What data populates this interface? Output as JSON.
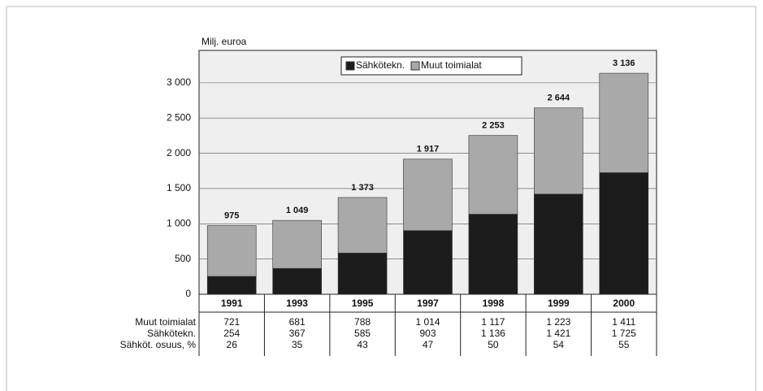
{
  "chart_data": {
    "type": "bar",
    "stacked": true,
    "y_axis_label": "Milj. euroa",
    "categories": [
      "1991",
      "1993",
      "1995",
      "1997",
      "1998",
      "1999",
      "2000"
    ],
    "series": [
      {
        "name": "Sähkötekn.",
        "color": "#1c1c1c",
        "values": [
          254,
          367,
          585,
          903,
          1136,
          1421,
          1725
        ],
        "value_labels": [
          "254",
          "367",
          "585",
          "903",
          "1 136",
          "1 421",
          "1 725"
        ]
      },
      {
        "name": "Muut toimialat",
        "color": "#a9a9a9",
        "values": [
          721,
          681,
          788,
          1014,
          1117,
          1223,
          1411
        ],
        "value_labels": [
          "721",
          "681",
          "788",
          "1 014",
          "1 117",
          "1 223",
          "1 411"
        ]
      }
    ],
    "totals": [
      975,
      1049,
      1373,
      1917,
      2253,
      2644,
      3136
    ],
    "total_labels": [
      "975",
      "1 049",
      "1 373",
      "1 917",
      "2 253",
      "2 644",
      "3 136"
    ],
    "share": {
      "name": "Sähköt. osuus, %",
      "values": [
        26,
        35,
        43,
        47,
        50,
        54,
        55
      ]
    },
    "ylim": [
      0,
      3460
    ],
    "yticks": [
      0,
      500,
      {
        "value": 1000,
        "label": "1 000"
      },
      {
        "value": 1500,
        "label": "1 500"
      },
      {
        "value": 2000,
        "label": "2 000"
      },
      {
        "value": 2500,
        "label": "2 500"
      },
      {
        "value": 3000,
        "label": "3 000"
      }
    ],
    "grid": true,
    "legend": "top"
  }
}
